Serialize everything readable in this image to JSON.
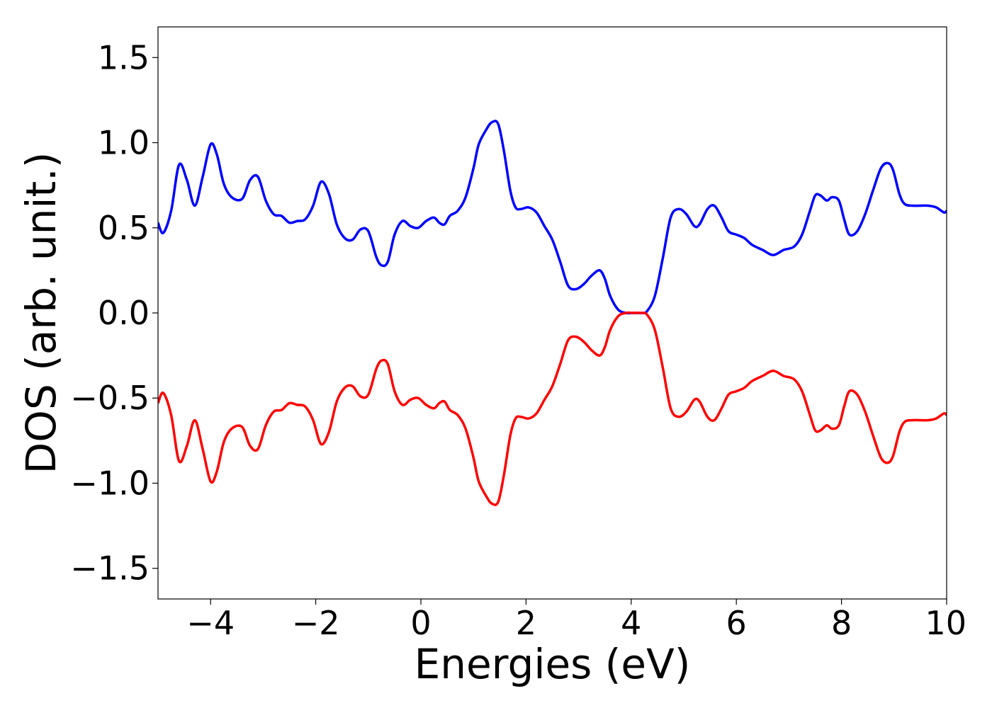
{
  "chart_data": {
    "type": "line",
    "title": "",
    "xlabel": "Energies (eV)",
    "ylabel": "DOS (arb. unit.)",
    "xlim": [
      -5,
      10
    ],
    "ylim": [
      -1.68,
      1.68
    ],
    "grid": false,
    "legend": "none",
    "x_ticks": [
      {
        "value": -4,
        "label": "−4"
      },
      {
        "value": -2,
        "label": "−2"
      },
      {
        "value": 0,
        "label": "0"
      },
      {
        "value": 2,
        "label": "2"
      },
      {
        "value": 4,
        "label": "4"
      },
      {
        "value": 6,
        "label": "6"
      },
      {
        "value": 8,
        "label": "8"
      },
      {
        "value": 10,
        "label": "10"
      }
    ],
    "y_ticks": [
      {
        "value": 1.5,
        "label": "1.5"
      },
      {
        "value": 1.0,
        "label": "1.0"
      },
      {
        "value": 0.5,
        "label": "0.5"
      },
      {
        "value": 0.0,
        "label": "0.0"
      },
      {
        "value": -0.5,
        "label": "−0.5"
      },
      {
        "value": -1.0,
        "label": "−1.0"
      },
      {
        "value": -1.5,
        "label": "−1.5"
      }
    ],
    "series": [
      {
        "color": "#0000ff",
        "x": [
          -5.0,
          -4.9,
          -4.75,
          -4.6,
          -4.45,
          -4.3,
          -4.15,
          -4.0,
          -3.88,
          -3.75,
          -3.6,
          -3.4,
          -3.25,
          -3.1,
          -2.95,
          -2.8,
          -2.65,
          -2.5,
          -2.35,
          -2.2,
          -2.05,
          -1.9,
          -1.75,
          -1.6,
          -1.45,
          -1.3,
          -1.15,
          -1.0,
          -0.85,
          -0.75,
          -0.63,
          -0.5,
          -0.35,
          -0.2,
          -0.05,
          0.1,
          0.25,
          0.35,
          0.45,
          0.55,
          0.7,
          0.85,
          1.0,
          1.1,
          1.25,
          1.35,
          1.47,
          1.58,
          1.7,
          1.8,
          1.9,
          2.05,
          2.2,
          2.35,
          2.5,
          2.65,
          2.8,
          2.95,
          3.1,
          3.25,
          3.4,
          3.5,
          3.6,
          3.75,
          3.9,
          4.05,
          4.2,
          4.3,
          4.45,
          4.6,
          4.75,
          4.9,
          5.05,
          5.2,
          5.3,
          5.45,
          5.58,
          5.72,
          5.85,
          6.0,
          6.15,
          6.3,
          6.5,
          6.7,
          6.9,
          7.1,
          7.25,
          7.4,
          7.5,
          7.6,
          7.72,
          7.82,
          7.95,
          8.05,
          8.15,
          8.3,
          8.45,
          8.6,
          8.75,
          8.88,
          8.98,
          9.1,
          9.2,
          9.35,
          9.5,
          9.65,
          9.8,
          9.95,
          10.0
        ],
        "y": [
          0.53,
          0.47,
          0.6,
          0.87,
          0.78,
          0.63,
          0.8,
          0.99,
          0.93,
          0.76,
          0.68,
          0.67,
          0.78,
          0.8,
          0.66,
          0.58,
          0.57,
          0.53,
          0.54,
          0.55,
          0.63,
          0.77,
          0.7,
          0.52,
          0.44,
          0.43,
          0.49,
          0.48,
          0.33,
          0.28,
          0.3,
          0.46,
          0.54,
          0.51,
          0.5,
          0.54,
          0.56,
          0.53,
          0.52,
          0.57,
          0.6,
          0.68,
          0.85,
          0.99,
          1.08,
          1.12,
          1.11,
          0.95,
          0.72,
          0.62,
          0.61,
          0.62,
          0.59,
          0.51,
          0.43,
          0.3,
          0.16,
          0.14,
          0.17,
          0.22,
          0.25,
          0.2,
          0.1,
          0.02,
          0.0,
          0.0,
          0.0,
          0.01,
          0.1,
          0.32,
          0.56,
          0.61,
          0.58,
          0.51,
          0.52,
          0.61,
          0.63,
          0.56,
          0.48,
          0.46,
          0.44,
          0.4,
          0.37,
          0.34,
          0.37,
          0.39,
          0.46,
          0.6,
          0.69,
          0.69,
          0.66,
          0.68,
          0.66,
          0.55,
          0.46,
          0.48,
          0.58,
          0.72,
          0.85,
          0.88,
          0.84,
          0.7,
          0.64,
          0.63,
          0.63,
          0.63,
          0.62,
          0.59,
          0.6
        ]
      },
      {
        "color": "#ff0000",
        "x": [
          -5.0,
          -4.9,
          -4.75,
          -4.6,
          -4.45,
          -4.3,
          -4.15,
          -4.0,
          -3.88,
          -3.75,
          -3.6,
          -3.4,
          -3.25,
          -3.1,
          -2.95,
          -2.8,
          -2.65,
          -2.5,
          -2.35,
          -2.2,
          -2.05,
          -1.9,
          -1.75,
          -1.6,
          -1.45,
          -1.3,
          -1.15,
          -1.0,
          -0.85,
          -0.75,
          -0.63,
          -0.5,
          -0.35,
          -0.2,
          -0.05,
          0.1,
          0.25,
          0.35,
          0.45,
          0.55,
          0.7,
          0.85,
          1.0,
          1.1,
          1.25,
          1.35,
          1.47,
          1.58,
          1.7,
          1.8,
          1.9,
          2.05,
          2.2,
          2.35,
          2.5,
          2.65,
          2.8,
          2.95,
          3.1,
          3.25,
          3.4,
          3.5,
          3.6,
          3.75,
          3.9,
          4.05,
          4.2,
          4.3,
          4.45,
          4.6,
          4.75,
          4.9,
          5.05,
          5.2,
          5.3,
          5.45,
          5.58,
          5.72,
          5.85,
          6.0,
          6.15,
          6.3,
          6.5,
          6.7,
          6.9,
          7.1,
          7.25,
          7.4,
          7.5,
          7.6,
          7.72,
          7.82,
          7.95,
          8.05,
          8.15,
          8.3,
          8.45,
          8.6,
          8.75,
          8.88,
          8.98,
          9.1,
          9.2,
          9.35,
          9.5,
          9.65,
          9.8,
          9.95,
          10.0
        ],
        "y": [
          -0.53,
          -0.47,
          -0.6,
          -0.87,
          -0.78,
          -0.63,
          -0.8,
          -0.99,
          -0.93,
          -0.76,
          -0.68,
          -0.67,
          -0.78,
          -0.8,
          -0.66,
          -0.58,
          -0.57,
          -0.53,
          -0.54,
          -0.55,
          -0.63,
          -0.77,
          -0.7,
          -0.52,
          -0.44,
          -0.43,
          -0.49,
          -0.48,
          -0.33,
          -0.28,
          -0.3,
          -0.46,
          -0.54,
          -0.51,
          -0.5,
          -0.54,
          -0.56,
          -0.53,
          -0.52,
          -0.57,
          -0.6,
          -0.68,
          -0.85,
          -0.99,
          -1.08,
          -1.12,
          -1.11,
          -0.95,
          -0.72,
          -0.62,
          -0.61,
          -0.62,
          -0.59,
          -0.51,
          -0.43,
          -0.3,
          -0.16,
          -0.14,
          -0.17,
          -0.22,
          -0.25,
          -0.2,
          -0.1,
          -0.02,
          0.0,
          0.0,
          0.0,
          -0.01,
          -0.1,
          -0.32,
          -0.56,
          -0.61,
          -0.58,
          -0.51,
          -0.52,
          -0.61,
          -0.63,
          -0.56,
          -0.48,
          -0.46,
          -0.44,
          -0.4,
          -0.37,
          -0.34,
          -0.37,
          -0.39,
          -0.46,
          -0.6,
          -0.69,
          -0.69,
          -0.66,
          -0.68,
          -0.66,
          -0.55,
          -0.46,
          -0.48,
          -0.58,
          -0.72,
          -0.85,
          -0.88,
          -0.84,
          -0.7,
          -0.64,
          -0.63,
          -0.63,
          -0.63,
          -0.62,
          -0.59,
          -0.6
        ]
      }
    ]
  }
}
